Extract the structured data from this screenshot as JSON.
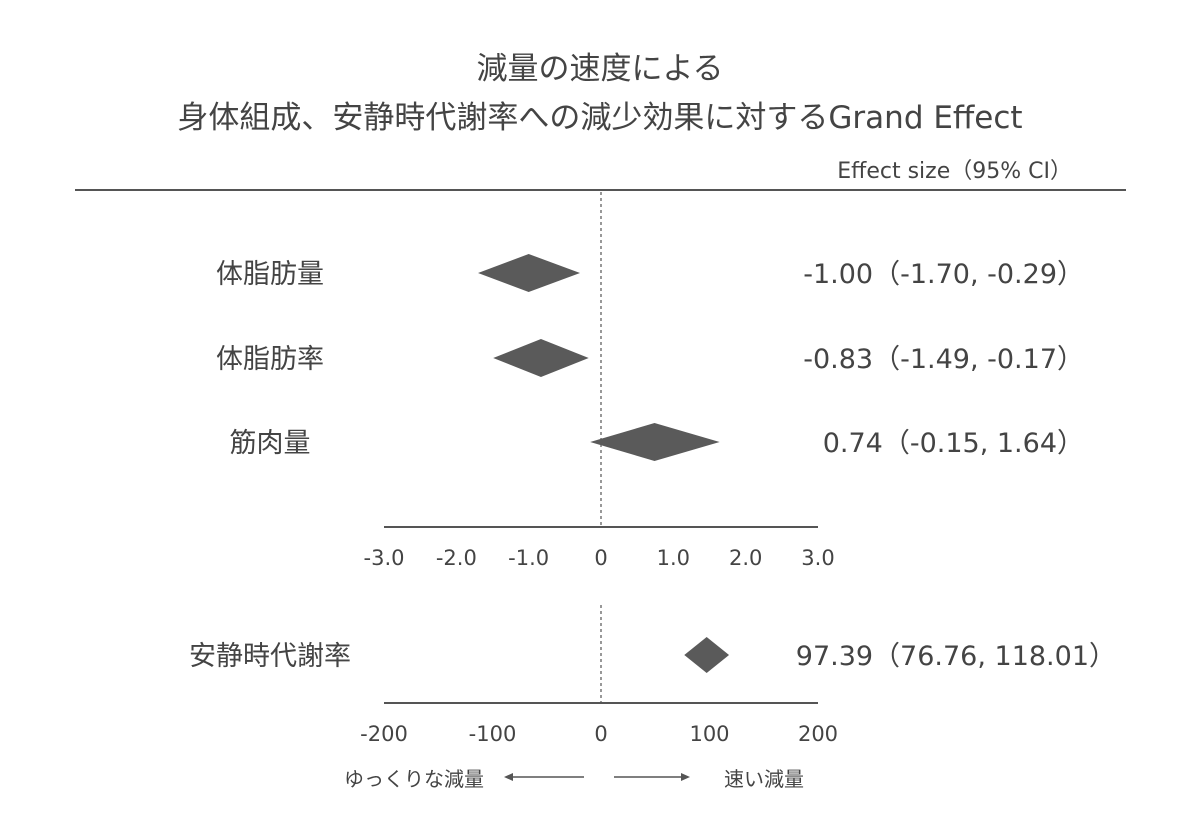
{
  "title_line1": "減量の速度による",
  "title_line2": "身体組成、安静時代謝率への減少効果に対するGrand Effect",
  "effect_header": "Effect size（95% CI）",
  "colors": {
    "marker": "#5a5a5a",
    "text": "#444444",
    "axis": "#555555"
  },
  "chart_data": [
    {
      "type": "forest",
      "xlim": [
        -3.0,
        3.0
      ],
      "xticks": [
        "-3.0",
        "-2.0",
        "-1.0",
        "0",
        "1.0",
        "2.0",
        "3.0"
      ],
      "reference_line": 0,
      "rows": [
        {
          "label": "体脂肪量",
          "estimate": -1.0,
          "lower": -1.7,
          "upper": -0.29,
          "ci_text": "-1.00（-1.70, -0.29）"
        },
        {
          "label": "体脂肪率",
          "estimate": -0.83,
          "lower": -1.49,
          "upper": -0.17,
          "ci_text": "-0.83（-1.49, -0.17）"
        },
        {
          "label": "筋肉量",
          "estimate": 0.74,
          "lower": -0.15,
          "upper": 1.64,
          "ci_text": "0.74（-0.15, 1.64）"
        }
      ]
    },
    {
      "type": "forest",
      "xlim": [
        -200,
        200
      ],
      "xticks": [
        "-200",
        "-100",
        "0",
        "100",
        "200"
      ],
      "reference_line": 0,
      "rows": [
        {
          "label": "安静時代謝率",
          "estimate": 97.39,
          "lower": 76.76,
          "upper": 118.01,
          "ci_text": "97.39（76.76, 118.01）"
        }
      ]
    }
  ],
  "direction": {
    "left": "ゆっくりな減量",
    "right": "速い減量"
  }
}
